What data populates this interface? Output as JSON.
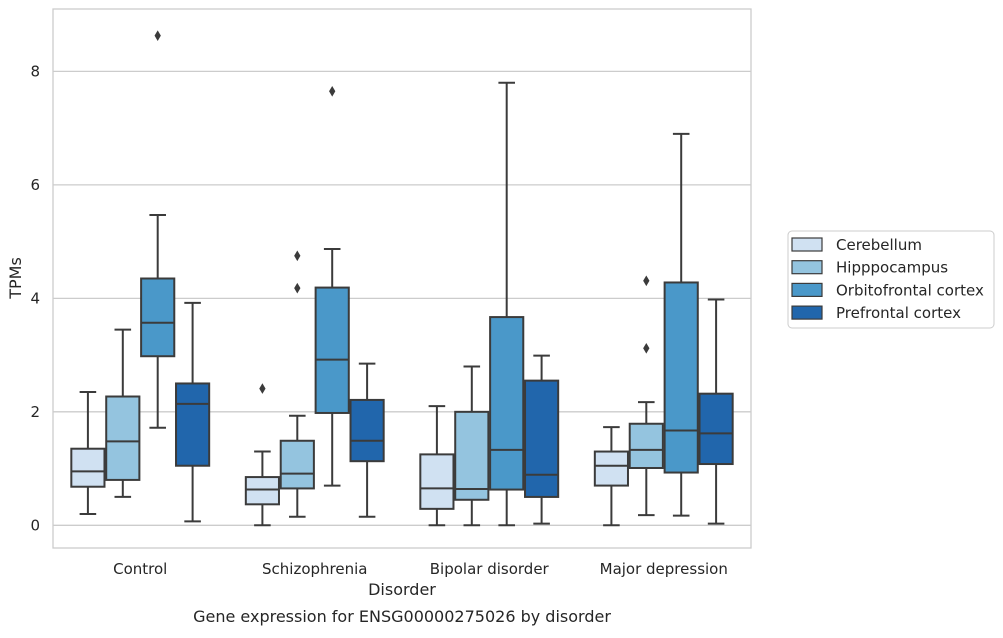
{
  "chart_data": {
    "type": "box",
    "title": "",
    "caption": "Gene expression for ENSG00000275026 by disorder",
    "xlabel": "Disorder",
    "ylabel": "TPMs",
    "ylim": [
      -0.4,
      9.1
    ],
    "yticks": [
      0,
      2,
      4,
      6,
      8
    ],
    "grid": "horizontal",
    "legend_position": "right",
    "categories": [
      "Control",
      "Schizophrenia",
      "Bipolar disorder",
      "Major depression"
    ],
    "series": [
      {
        "name": "Cerebellum",
        "color": "#d0e1f2",
        "boxes": [
          {
            "whisker_low": 0.2,
            "q1": 0.68,
            "median": 0.95,
            "q3": 1.35,
            "whisker_high": 2.35,
            "outliers": []
          },
          {
            "whisker_low": 0.0,
            "q1": 0.37,
            "median": 0.63,
            "q3": 0.85,
            "whisker_high": 1.3,
            "outliers": [
              2.41
            ]
          },
          {
            "whisker_low": 0.0,
            "q1": 0.29,
            "median": 0.65,
            "q3": 1.25,
            "whisker_high": 2.1,
            "outliers": []
          },
          {
            "whisker_low": 0.0,
            "q1": 0.7,
            "median": 1.05,
            "q3": 1.3,
            "whisker_high": 1.73,
            "outliers": []
          }
        ]
      },
      {
        "name": "Hipppocampus",
        "color": "#94c4df",
        "boxes": [
          {
            "whisker_low": 0.5,
            "q1": 0.8,
            "median": 1.48,
            "q3": 2.27,
            "whisker_high": 3.45,
            "outliers": []
          },
          {
            "whisker_low": 0.15,
            "q1": 0.65,
            "median": 0.91,
            "q3": 1.49,
            "whisker_high": 1.93,
            "outliers": [
              4.18,
              4.75
            ]
          },
          {
            "whisker_low": 0.0,
            "q1": 0.45,
            "median": 0.64,
            "q3": 2.0,
            "whisker_high": 2.8,
            "outliers": []
          },
          {
            "whisker_low": 0.18,
            "q1": 1.01,
            "median": 1.33,
            "q3": 1.79,
            "whisker_high": 2.17,
            "outliers": [
              3.12,
              4.31
            ]
          }
        ]
      },
      {
        "name": "Orbitofrontal cortex",
        "color": "#4a98c9",
        "boxes": [
          {
            "whisker_low": 1.72,
            "q1": 2.98,
            "median": 3.57,
            "q3": 4.35,
            "whisker_high": 5.47,
            "outliers": [
              8.63
            ]
          },
          {
            "whisker_low": 0.7,
            "q1": 1.98,
            "median": 2.92,
            "q3": 4.19,
            "whisker_high": 4.87,
            "outliers": [
              7.65
            ]
          },
          {
            "whisker_low": 0.0,
            "q1": 0.63,
            "median": 1.33,
            "q3": 3.67,
            "whisker_high": 7.8,
            "outliers": []
          },
          {
            "whisker_low": 0.17,
            "q1": 0.93,
            "median": 1.67,
            "q3": 4.28,
            "whisker_high": 6.9,
            "outliers": []
          }
        ]
      },
      {
        "name": "Prefrontal cortex",
        "color": "#2166ac",
        "boxes": [
          {
            "whisker_low": 0.07,
            "q1": 1.05,
            "median": 2.14,
            "q3": 2.5,
            "whisker_high": 3.92,
            "outliers": []
          },
          {
            "whisker_low": 0.15,
            "q1": 1.13,
            "median": 1.49,
            "q3": 2.21,
            "whisker_high": 2.85,
            "outliers": []
          },
          {
            "whisker_low": 0.03,
            "q1": 0.5,
            "median": 0.89,
            "q3": 2.55,
            "whisker_high": 2.99,
            "outliers": []
          },
          {
            "whisker_low": 0.03,
            "q1": 1.08,
            "median": 1.62,
            "q3": 2.32,
            "whisker_high": 3.98,
            "outliers": []
          }
        ]
      }
    ]
  }
}
